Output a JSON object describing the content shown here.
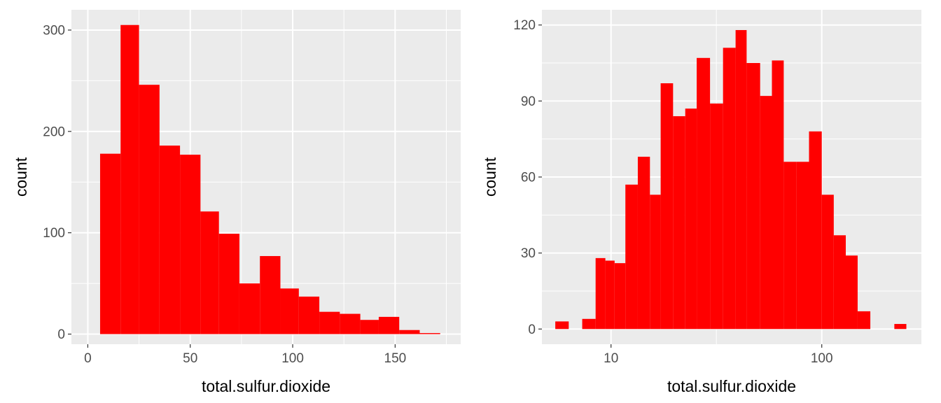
{
  "chart_data": [
    {
      "type": "bar",
      "xlabel": "total.sulfur.dioxide",
      "ylabel": "count",
      "xlim": [
        -8,
        182
      ],
      "ylim": [
        -10,
        320
      ],
      "x_ticks": [
        0,
        50,
        100,
        150
      ],
      "x_tick_labels": [
        "0",
        "50",
        "100",
        "150"
      ],
      "y_ticks": [
        0,
        100,
        200,
        300
      ],
      "y_tick_labels": [
        "0",
        "100",
        "200",
        "300"
      ],
      "grid": true,
      "bar_color": "#ff0000",
      "panel_color": "#ebebeb",
      "bins": [
        {
          "x0": 6,
          "x1": 16,
          "count": 178
        },
        {
          "x0": 16,
          "x1": 25,
          "count": 305
        },
        {
          "x0": 25,
          "x1": 35,
          "count": 246
        },
        {
          "x0": 35,
          "x1": 45,
          "count": 186
        },
        {
          "x0": 45,
          "x1": 55,
          "count": 177
        },
        {
          "x0": 55,
          "x1": 64,
          "count": 121
        },
        {
          "x0": 64,
          "x1": 74,
          "count": 99
        },
        {
          "x0": 74,
          "x1": 84,
          "count": 50
        },
        {
          "x0": 84,
          "x1": 94,
          "count": 77
        },
        {
          "x0": 94,
          "x1": 103,
          "count": 45
        },
        {
          "x0": 103,
          "x1": 113,
          "count": 37
        },
        {
          "x0": 113,
          "x1": 123,
          "count": 22
        },
        {
          "x0": 123,
          "x1": 133,
          "count": 20
        },
        {
          "x0": 133,
          "x1": 142,
          "count": 14
        },
        {
          "x0": 142,
          "x1": 152,
          "count": 17
        },
        {
          "x0": 152,
          "x1": 162,
          "count": 4
        },
        {
          "x0": 162,
          "x1": 172,
          "count": 1
        }
      ]
    },
    {
      "type": "bar",
      "scale_x": "log10",
      "xlabel": "total.sulfur.dioxide",
      "ylabel": "count",
      "xlim": [
        4.7,
        297
      ],
      "ylim": [
        -6,
        126
      ],
      "x_ticks": [
        10,
        100
      ],
      "x_tick_labels": [
        "10",
        "100"
      ],
      "y_ticks": [
        0,
        30,
        60,
        90,
        120
      ],
      "y_tick_labels": [
        "0",
        "30",
        "60",
        "90",
        "120"
      ],
      "grid": true,
      "bar_color": "#ff0000",
      "panel_color": "#ebebeb",
      "bins": [
        {
          "x0": 5.44,
          "x1": 6.3,
          "count": 3
        },
        {
          "x0": 6.3,
          "x1": 7.3,
          "count": 0
        },
        {
          "x0": 7.3,
          "x1": 8.45,
          "count": 4
        },
        {
          "x0": 8.45,
          "x1": 9.4,
          "count": 28
        },
        {
          "x0": 9.4,
          "x1": 10.4,
          "count": 27
        },
        {
          "x0": 10.4,
          "x1": 11.7,
          "count": 26
        },
        {
          "x0": 11.7,
          "x1": 13.4,
          "count": 57
        },
        {
          "x0": 13.4,
          "x1": 15.3,
          "count": 68
        },
        {
          "x0": 15.3,
          "x1": 17.2,
          "count": 53
        },
        {
          "x0": 17.2,
          "x1": 19.7,
          "count": 97
        },
        {
          "x0": 19.7,
          "x1": 22.5,
          "count": 84
        },
        {
          "x0": 22.5,
          "x1": 25.5,
          "count": 87
        },
        {
          "x0": 25.5,
          "x1": 29.5,
          "count": 107
        },
        {
          "x0": 29.5,
          "x1": 34.0,
          "count": 89
        },
        {
          "x0": 34.0,
          "x1": 39.0,
          "count": 111
        },
        {
          "x0": 39.0,
          "x1": 44.0,
          "count": 118
        },
        {
          "x0": 44.0,
          "x1": 51.0,
          "count": 105
        },
        {
          "x0": 51.0,
          "x1": 58.0,
          "count": 92
        },
        {
          "x0": 58.0,
          "x1": 66.0,
          "count": 106
        },
        {
          "x0": 66.0,
          "x1": 76.0,
          "count": 66
        },
        {
          "x0": 76.0,
          "x1": 87.0,
          "count": 66
        },
        {
          "x0": 87.0,
          "x1": 100.0,
          "count": 78
        },
        {
          "x0": 100.0,
          "x1": 114.0,
          "count": 53
        },
        {
          "x0": 114.0,
          "x1": 130.0,
          "count": 37
        },
        {
          "x0": 130.0,
          "x1": 148.0,
          "count": 29
        },
        {
          "x0": 148.0,
          "x1": 170.0,
          "count": 7
        },
        {
          "x0": 170.0,
          "x1": 194.0,
          "count": 0
        },
        {
          "x0": 194.0,
          "x1": 221.0,
          "count": 0
        },
        {
          "x0": 221.0,
          "x1": 252.0,
          "count": 2
        }
      ]
    }
  ]
}
